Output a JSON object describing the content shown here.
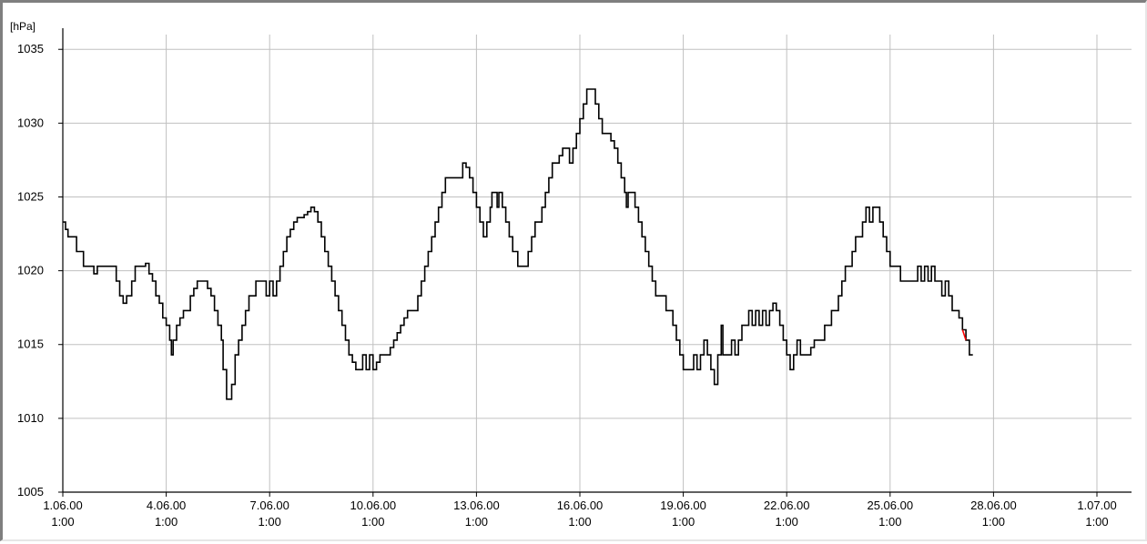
{
  "chart_data": {
    "type": "line",
    "title": "",
    "xlabel": "",
    "ylabel": "[hPa]",
    "ylim": [
      1005,
      1036
    ],
    "xlim": [
      "1.06.00 1:00",
      "1.07.00 1:00"
    ],
    "y_ticks": [
      1005,
      1010,
      1015,
      1020,
      1025,
      1030,
      1035
    ],
    "x_ticks": [
      {
        "line1": "1.06.00",
        "line2": "1:00",
        "day": 0
      },
      {
        "line1": "4.06.00",
        "line2": "1:00",
        "day": 3
      },
      {
        "line1": "7.06.00",
        "line2": "1:00",
        "day": 6
      },
      {
        "line1": "10.06.00",
        "line2": "1:00",
        "day": 9
      },
      {
        "line1": "13.06.00",
        "line2": "1:00",
        "day": 12
      },
      {
        "line1": "16.06.00",
        "line2": "1:00",
        "day": 15
      },
      {
        "line1": "19.06.00",
        "line2": "1:00",
        "day": 18
      },
      {
        "line1": "22.06.00",
        "line2": "1:00",
        "day": 21
      },
      {
        "line1": "25.06.00",
        "line2": "1:00",
        "day": 24
      },
      {
        "line1": "28.06.00",
        "line2": "1:00",
        "day": 27
      },
      {
        "line1": "1.07.00",
        "line2": "1:00",
        "day": 30
      }
    ],
    "grid": true,
    "series": [
      {
        "color": "#000000",
        "highlight_color": "#ff0000",
        "points": [
          [
            0.0,
            1023.3
          ],
          [
            0.08,
            1022.8
          ],
          [
            0.15,
            1022.3
          ],
          [
            0.3,
            1022.3
          ],
          [
            0.4,
            1021.3
          ],
          [
            0.5,
            1021.3
          ],
          [
            0.6,
            1020.3
          ],
          [
            0.8,
            1020.3
          ],
          [
            0.9,
            1019.8
          ],
          [
            1.0,
            1020.3
          ],
          [
            1.3,
            1020.3
          ],
          [
            1.5,
            1020.3
          ],
          [
            1.55,
            1019.3
          ],
          [
            1.65,
            1018.3
          ],
          [
            1.75,
            1017.8
          ],
          [
            1.85,
            1018.3
          ],
          [
            2.0,
            1019.3
          ],
          [
            2.1,
            1020.3
          ],
          [
            2.3,
            1020.3
          ],
          [
            2.4,
            1020.5
          ],
          [
            2.5,
            1019.8
          ],
          [
            2.6,
            1019.3
          ],
          [
            2.7,
            1018.3
          ],
          [
            2.8,
            1017.8
          ],
          [
            2.9,
            1016.8
          ],
          [
            3.0,
            1016.3
          ],
          [
            3.1,
            1015.3
          ],
          [
            3.15,
            1014.3
          ],
          [
            3.2,
            1015.3
          ],
          [
            3.3,
            1016.3
          ],
          [
            3.4,
            1016.8
          ],
          [
            3.5,
            1017.3
          ],
          [
            3.6,
            1017.3
          ],
          [
            3.7,
            1018.3
          ],
          [
            3.8,
            1018.8
          ],
          [
            3.9,
            1019.3
          ],
          [
            4.0,
            1019.3
          ],
          [
            4.1,
            1019.3
          ],
          [
            4.2,
            1018.8
          ],
          [
            4.3,
            1018.3
          ],
          [
            4.4,
            1017.3
          ],
          [
            4.5,
            1016.3
          ],
          [
            4.6,
            1015.3
          ],
          [
            4.65,
            1013.3
          ],
          [
            4.75,
            1011.3
          ],
          [
            4.85,
            1011.3
          ],
          [
            4.9,
            1012.3
          ],
          [
            5.0,
            1014.3
          ],
          [
            5.1,
            1015.3
          ],
          [
            5.2,
            1016.3
          ],
          [
            5.3,
            1017.3
          ],
          [
            5.4,
            1018.3
          ],
          [
            5.5,
            1018.3
          ],
          [
            5.6,
            1019.3
          ],
          [
            5.8,
            1019.3
          ],
          [
            5.9,
            1018.3
          ],
          [
            6.0,
            1019.3
          ],
          [
            6.1,
            1018.3
          ],
          [
            6.2,
            1019.3
          ],
          [
            6.3,
            1020.3
          ],
          [
            6.4,
            1021.3
          ],
          [
            6.5,
            1022.3
          ],
          [
            6.6,
            1022.8
          ],
          [
            6.7,
            1023.3
          ],
          [
            6.8,
            1023.6
          ],
          [
            6.9,
            1023.6
          ],
          [
            7.0,
            1023.8
          ],
          [
            7.1,
            1024.0
          ],
          [
            7.2,
            1024.3
          ],
          [
            7.3,
            1024.0
          ],
          [
            7.4,
            1023.3
          ],
          [
            7.5,
            1022.3
          ],
          [
            7.6,
            1021.3
          ],
          [
            7.7,
            1020.3
          ],
          [
            7.8,
            1019.3
          ],
          [
            7.9,
            1018.3
          ],
          [
            8.0,
            1017.3
          ],
          [
            8.1,
            1016.3
          ],
          [
            8.2,
            1015.3
          ],
          [
            8.3,
            1014.3
          ],
          [
            8.4,
            1013.8
          ],
          [
            8.5,
            1013.3
          ],
          [
            8.6,
            1013.3
          ],
          [
            8.7,
            1014.3
          ],
          [
            8.8,
            1013.3
          ],
          [
            8.9,
            1014.3
          ],
          [
            9.0,
            1013.3
          ],
          [
            9.1,
            1013.8
          ],
          [
            9.2,
            1014.3
          ],
          [
            9.3,
            1014.3
          ],
          [
            9.4,
            1014.3
          ],
          [
            9.5,
            1014.8
          ],
          [
            9.6,
            1015.3
          ],
          [
            9.7,
            1015.8
          ],
          [
            9.8,
            1016.3
          ],
          [
            9.9,
            1016.8
          ],
          [
            10.0,
            1017.3
          ],
          [
            10.2,
            1017.3
          ],
          [
            10.3,
            1018.3
          ],
          [
            10.4,
            1019.3
          ],
          [
            10.5,
            1020.3
          ],
          [
            10.6,
            1021.3
          ],
          [
            10.7,
            1022.3
          ],
          [
            10.8,
            1023.3
          ],
          [
            10.9,
            1024.3
          ],
          [
            11.0,
            1025.3
          ],
          [
            11.1,
            1026.3
          ],
          [
            11.2,
            1026.3
          ],
          [
            11.4,
            1026.3
          ],
          [
            11.5,
            1026.3
          ],
          [
            11.6,
            1027.3
          ],
          [
            11.7,
            1027.0
          ],
          [
            11.8,
            1026.3
          ],
          [
            11.9,
            1025.3
          ],
          [
            12.0,
            1024.3
          ],
          [
            12.1,
            1023.3
          ],
          [
            12.2,
            1022.3
          ],
          [
            12.3,
            1023.3
          ],
          [
            12.4,
            1024.3
          ],
          [
            12.45,
            1025.3
          ],
          [
            12.55,
            1025.3
          ],
          [
            12.6,
            1024.3
          ],
          [
            12.65,
            1025.3
          ],
          [
            12.75,
            1024.3
          ],
          [
            12.85,
            1023.3
          ],
          [
            12.95,
            1022.3
          ],
          [
            13.05,
            1021.3
          ],
          [
            13.2,
            1020.3
          ],
          [
            13.4,
            1020.3
          ],
          [
            13.5,
            1021.3
          ],
          [
            13.6,
            1022.3
          ],
          [
            13.7,
            1023.3
          ],
          [
            13.8,
            1023.3
          ],
          [
            13.9,
            1024.3
          ],
          [
            14.0,
            1025.3
          ],
          [
            14.1,
            1026.3
          ],
          [
            14.2,
            1027.3
          ],
          [
            14.3,
            1027.3
          ],
          [
            14.4,
            1027.8
          ],
          [
            14.5,
            1028.3
          ],
          [
            14.6,
            1028.3
          ],
          [
            14.7,
            1027.3
          ],
          [
            14.8,
            1028.3
          ],
          [
            14.9,
            1029.3
          ],
          [
            15.0,
            1030.3
          ],
          [
            15.1,
            1031.3
          ],
          [
            15.2,
            1032.3
          ],
          [
            15.35,
            1032.3
          ],
          [
            15.45,
            1031.3
          ],
          [
            15.55,
            1030.3
          ],
          [
            15.65,
            1029.3
          ],
          [
            15.8,
            1029.3
          ],
          [
            15.9,
            1028.8
          ],
          [
            16.0,
            1028.3
          ],
          [
            16.1,
            1027.3
          ],
          [
            16.2,
            1026.3
          ],
          [
            16.3,
            1025.3
          ],
          [
            16.35,
            1024.3
          ],
          [
            16.4,
            1025.3
          ],
          [
            16.5,
            1025.3
          ],
          [
            16.6,
            1024.3
          ],
          [
            16.7,
            1023.3
          ],
          [
            16.8,
            1022.3
          ],
          [
            16.9,
            1021.3
          ],
          [
            17.0,
            1020.3
          ],
          [
            17.1,
            1019.3
          ],
          [
            17.2,
            1018.3
          ],
          [
            17.4,
            1018.3
          ],
          [
            17.5,
            1017.3
          ],
          [
            17.6,
            1017.3
          ],
          [
            17.7,
            1016.3
          ],
          [
            17.8,
            1015.3
          ],
          [
            17.9,
            1014.3
          ],
          [
            18.0,
            1013.3
          ],
          [
            18.2,
            1013.3
          ],
          [
            18.3,
            1014.3
          ],
          [
            18.4,
            1013.3
          ],
          [
            18.5,
            1014.3
          ],
          [
            18.6,
            1015.3
          ],
          [
            18.7,
            1014.3
          ],
          [
            18.8,
            1013.3
          ],
          [
            18.9,
            1012.3
          ],
          [
            19.0,
            1014.3
          ],
          [
            19.1,
            1016.3
          ],
          [
            19.15,
            1014.3
          ],
          [
            19.3,
            1014.3
          ],
          [
            19.4,
            1015.3
          ],
          [
            19.5,
            1014.3
          ],
          [
            19.6,
            1015.3
          ],
          [
            19.7,
            1016.3
          ],
          [
            19.8,
            1016.3
          ],
          [
            19.9,
            1017.3
          ],
          [
            20.0,
            1016.3
          ],
          [
            20.1,
            1017.3
          ],
          [
            20.2,
            1016.3
          ],
          [
            20.3,
            1017.3
          ],
          [
            20.4,
            1016.3
          ],
          [
            20.5,
            1017.3
          ],
          [
            20.6,
            1017.8
          ],
          [
            20.7,
            1017.3
          ],
          [
            20.8,
            1016.3
          ],
          [
            20.9,
            1015.3
          ],
          [
            21.0,
            1014.3
          ],
          [
            21.1,
            1013.3
          ],
          [
            21.2,
            1014.3
          ],
          [
            21.3,
            1015.3
          ],
          [
            21.4,
            1014.3
          ],
          [
            21.6,
            1014.3
          ],
          [
            21.7,
            1014.8
          ],
          [
            21.8,
            1015.3
          ],
          [
            21.9,
            1015.3
          ],
          [
            22.0,
            1015.3
          ],
          [
            22.1,
            1016.3
          ],
          [
            22.2,
            1016.3
          ],
          [
            22.3,
            1017.3
          ],
          [
            22.4,
            1017.3
          ],
          [
            22.5,
            1018.3
          ],
          [
            22.6,
            1019.3
          ],
          [
            22.7,
            1020.3
          ],
          [
            22.8,
            1020.3
          ],
          [
            22.9,
            1021.3
          ],
          [
            23.0,
            1022.3
          ],
          [
            23.1,
            1022.3
          ],
          [
            23.2,
            1023.3
          ],
          [
            23.3,
            1024.3
          ],
          [
            23.4,
            1023.3
          ],
          [
            23.5,
            1024.3
          ],
          [
            23.6,
            1024.3
          ],
          [
            23.7,
            1023.3
          ],
          [
            23.8,
            1022.3
          ],
          [
            23.9,
            1021.3
          ],
          [
            24.0,
            1020.3
          ],
          [
            24.2,
            1020.3
          ],
          [
            24.3,
            1019.3
          ],
          [
            24.5,
            1019.3
          ],
          [
            24.7,
            1019.3
          ],
          [
            24.8,
            1020.3
          ],
          [
            24.9,
            1019.3
          ],
          [
            25.0,
            1020.3
          ],
          [
            25.1,
            1019.3
          ],
          [
            25.2,
            1020.3
          ],
          [
            25.3,
            1019.3
          ],
          [
            25.4,
            1019.3
          ],
          [
            25.5,
            1018.3
          ],
          [
            25.6,
            1019.3
          ],
          [
            25.7,
            1018.3
          ],
          [
            25.8,
            1017.3
          ],
          [
            25.9,
            1017.3
          ],
          [
            26.0,
            1016.8
          ],
          [
            26.1,
            1016.0
          ],
          [
            26.2,
            1015.3
          ],
          [
            26.3,
            1014.3
          ],
          [
            26.4,
            1014.3
          ]
        ]
      }
    ]
  }
}
